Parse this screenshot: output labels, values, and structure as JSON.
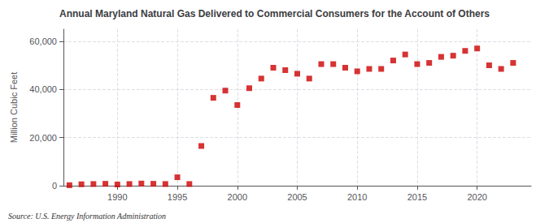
{
  "chart_data": {
    "type": "scatter",
    "title": "Annual Maryland Natural Gas Delivered to Commercial Consumers for the Account of Others",
    "ylabel": "Million Cubic Feet",
    "annotations": [
      "Source: U.S. Energy Information Administration"
    ],
    "x": [
      1986,
      1987,
      1988,
      1989,
      1990,
      1991,
      1992,
      1993,
      1994,
      1995,
      1996,
      1997,
      1998,
      1999,
      2000,
      2001,
      2002,
      2003,
      2004,
      2005,
      2006,
      2007,
      2008,
      2009,
      2010,
      2011,
      2012,
      2013,
      2014,
      2015,
      2016,
      2017,
      2018,
      2019,
      2020,
      2021,
      2022,
      2023
    ],
    "values": [
      200,
      600,
      700,
      800,
      500,
      700,
      900,
      800,
      700,
      3500,
      700,
      16500,
      36500,
      39500,
      33500,
      40500,
      44500,
      49000,
      48000,
      46500,
      44500,
      50500,
      50500,
      49000,
      47500,
      48500,
      48500,
      52000,
      54500,
      50500,
      51000,
      53500,
      54000,
      56000,
      57000,
      50000,
      48500,
      51000
    ],
    "color": "#cc0000",
    "marker": "square",
    "xlim": [
      1985.5,
      2024.5
    ],
    "xticks": [
      1990,
      1995,
      2000,
      2005,
      2010,
      2015,
      2020
    ],
    "ylim": [
      0,
      65000
    ],
    "yticks": [
      0,
      {
        "value": 20000,
        "label": "20,000"
      },
      {
        "value": 40000,
        "label": "40,000"
      },
      {
        "value": 60000,
        "label": "60,000"
      }
    ],
    "grid": true
  }
}
